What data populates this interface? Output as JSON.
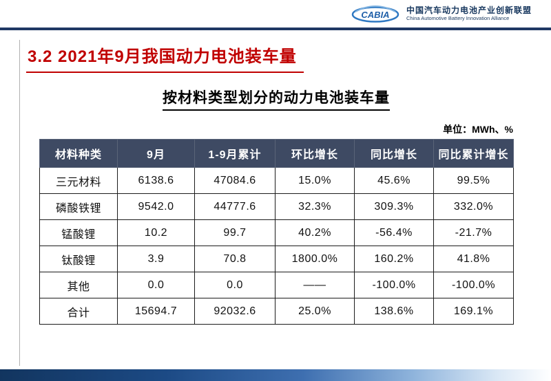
{
  "header": {
    "logo_text": "CABIA",
    "org_cn": "中国汽车动力电池产业创新联盟",
    "org_en": "China Automotive Battery Innovation Alliance"
  },
  "slide": {
    "section_title": "3.2  2021年9月我国动力电池装车量",
    "table_title": "按材料类型划分的动力电池装车量",
    "unit_label": "单位：MWh、%"
  },
  "table": {
    "headers": [
      "材料种类",
      "9月",
      "1-9月累计",
      "环比增长",
      "同比增长",
      "同比累计增长"
    ],
    "rows": [
      [
        "三元材料",
        "6138.6",
        "47084.6",
        "15.0%",
        "45.6%",
        "99.5%"
      ],
      [
        "磷酸铁锂",
        "9542.0",
        "44777.6",
        "32.3%",
        "309.3%",
        "332.0%"
      ],
      [
        "锰酸锂",
        "10.2",
        "99.7",
        "40.2%",
        "-56.4%",
        "-21.7%"
      ],
      [
        "钛酸锂",
        "3.9",
        "70.8",
        "1800.0%",
        "160.2%",
        "41.8%"
      ],
      [
        "其他",
        "0.0",
        "0.0",
        "——",
        "-100.0%",
        "-100.0%"
      ],
      [
        "合计",
        "15694.7",
        "92032.6",
        "25.0%",
        "138.6%",
        "169.1%"
      ]
    ]
  }
}
